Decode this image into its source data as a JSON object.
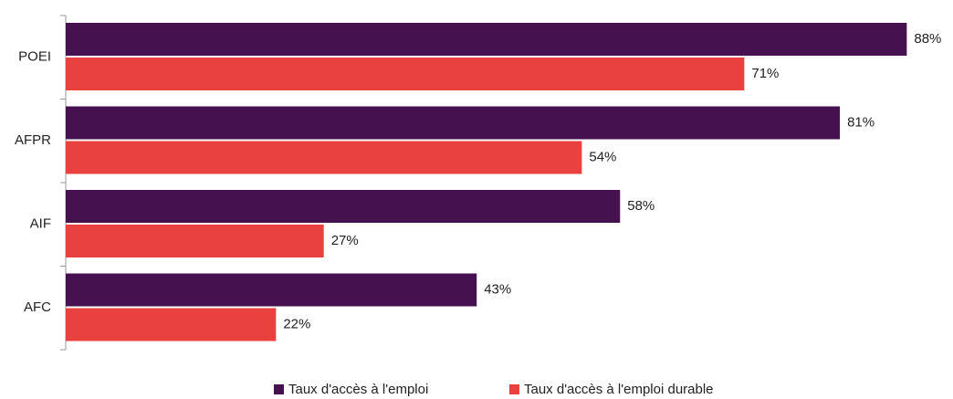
{
  "chart_data": {
    "type": "hbar",
    "categories": [
      "POEI",
      "AFPR",
      "AIF",
      "AFC"
    ],
    "series": [
      {
        "name": "Taux d'accès à l'emploi",
        "color": "#46114f",
        "values": [
          88,
          81,
          58,
          43
        ],
        "value_labels": [
          "88%",
          "81%",
          "58%",
          "43%"
        ]
      },
      {
        "name": "Taux d'accès à l'emploi durable",
        "color": "#e8413f",
        "values": [
          71,
          54,
          27,
          22
        ],
        "value_labels": [
          "71%",
          "54%",
          "27%",
          "22%"
        ]
      }
    ],
    "legend": "bottom"
  }
}
